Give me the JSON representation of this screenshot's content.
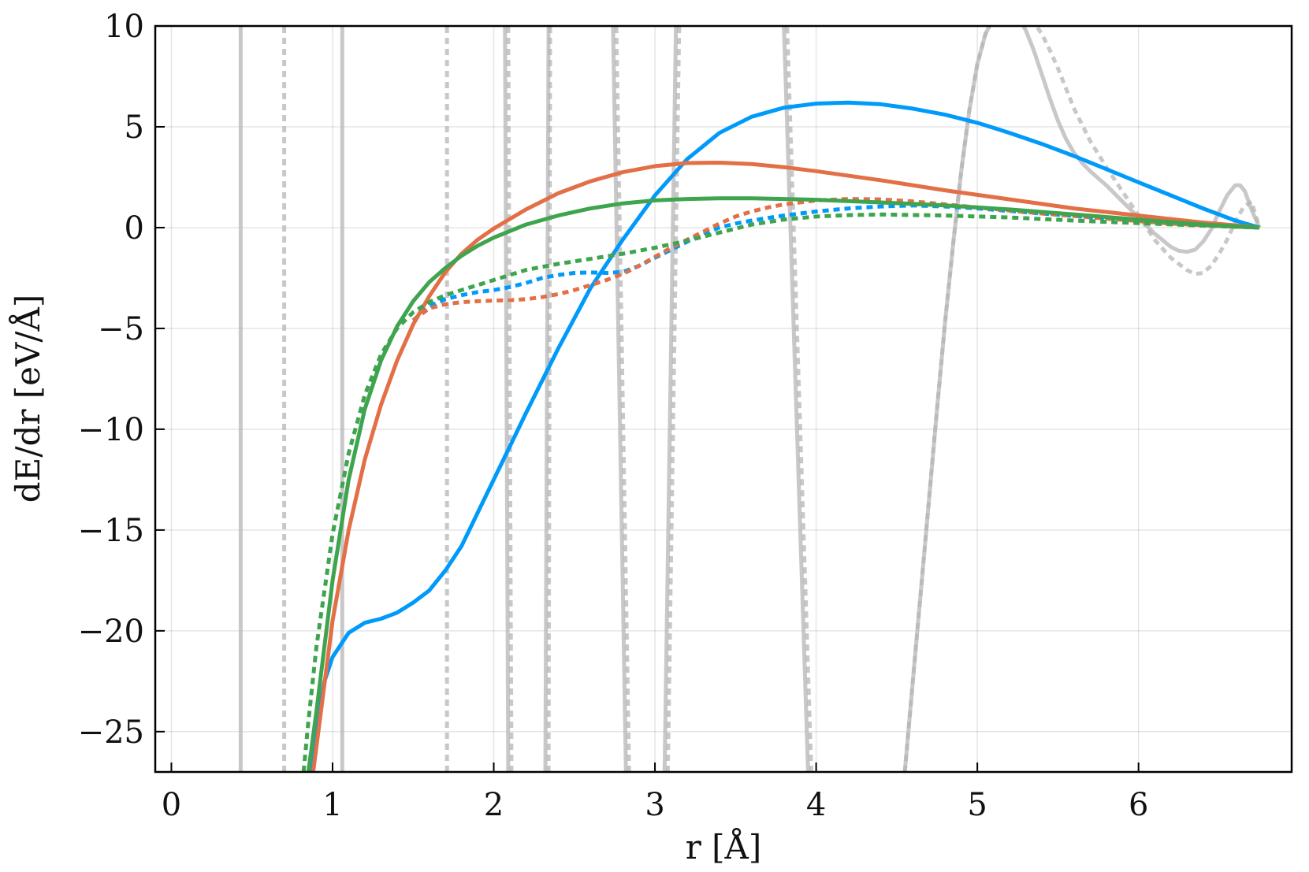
{
  "chart_data": {
    "type": "line",
    "title": "",
    "xlabel": "r [Å]",
    "ylabel": "dE/dr [eV/Å]",
    "xlim": [
      -0.1,
      6.95
    ],
    "ylim": [
      -27,
      10
    ],
    "xticks": [
      0,
      1,
      2,
      3,
      4,
      5,
      6
    ],
    "yticks": [
      10,
      5,
      0,
      -5,
      -10,
      -15,
      -20,
      -25
    ],
    "xtick_labels": [
      "0",
      "1",
      "2",
      "3",
      "4",
      "5",
      "6"
    ],
    "ytick_labels": [
      "10",
      "5",
      "0",
      "−5",
      "−10",
      "−15",
      "−20",
      "−25"
    ],
    "grid": true,
    "legend": "none",
    "colors": {
      "blue": "#009AFA",
      "orange": "#E26F46",
      "green": "#3EA44E",
      "gray": "#b5b5b5"
    },
    "series": [
      {
        "color": "blue",
        "style": "solid",
        "x": [
          0.87,
          0.9,
          0.95,
          1.0,
          1.1,
          1.2,
          1.3,
          1.4,
          1.5,
          1.6,
          1.7,
          1.8,
          2.0,
          2.2,
          2.4,
          2.6,
          2.8,
          3.0,
          3.2,
          3.4,
          3.6,
          3.8,
          4.0,
          4.2,
          4.4,
          4.6,
          4.8,
          5.0,
          5.2,
          5.4,
          5.6,
          5.8,
          6.0,
          6.2,
          6.4,
          6.6,
          6.75
        ],
        "y": [
          -27,
          -24.8,
          -22.5,
          -21.3,
          -20.1,
          -19.6,
          -19.4,
          -19.1,
          -18.6,
          -18.0,
          -17.0,
          -15.8,
          -12.5,
          -9.2,
          -6.0,
          -3.0,
          -0.6,
          1.6,
          3.4,
          4.7,
          5.5,
          5.95,
          6.15,
          6.2,
          6.12,
          5.9,
          5.6,
          5.2,
          4.7,
          4.15,
          3.55,
          2.9,
          2.25,
          1.6,
          0.95,
          0.35,
          0.0
        ]
      },
      {
        "color": "orange",
        "style": "solid",
        "x": [
          0.88,
          0.92,
          1.0,
          1.1,
          1.2,
          1.3,
          1.4,
          1.5,
          1.6,
          1.7,
          1.8,
          1.9,
          2.0,
          2.2,
          2.4,
          2.6,
          2.8,
          3.0,
          3.2,
          3.4,
          3.6,
          3.8,
          4.0,
          4.4,
          4.8,
          5.2,
          5.6,
          6.0,
          6.4,
          6.75
        ],
        "y": [
          -27,
          -24.5,
          -19.5,
          -15.0,
          -11.5,
          -8.8,
          -6.6,
          -4.8,
          -3.4,
          -2.2,
          -1.3,
          -0.6,
          -0.05,
          0.9,
          1.7,
          2.3,
          2.75,
          3.05,
          3.2,
          3.22,
          3.15,
          3.0,
          2.8,
          2.35,
          1.85,
          1.4,
          0.95,
          0.6,
          0.25,
          0.0
        ]
      },
      {
        "color": "green",
        "style": "solid",
        "x": [
          0.85,
          0.9,
          1.0,
          1.1,
          1.2,
          1.3,
          1.4,
          1.5,
          1.6,
          1.7,
          1.8,
          1.9,
          2.0,
          2.2,
          2.4,
          2.6,
          2.8,
          3.0,
          3.2,
          3.4,
          3.6,
          3.8,
          4.0,
          4.4,
          4.8,
          5.2,
          5.6,
          6.0,
          6.4,
          6.75
        ],
        "y": [
          -27,
          -24.0,
          -17.5,
          -12.5,
          -9.0,
          -6.6,
          -4.9,
          -3.65,
          -2.7,
          -2.0,
          -1.4,
          -0.9,
          -0.5,
          0.15,
          0.6,
          0.95,
          1.2,
          1.35,
          1.42,
          1.45,
          1.45,
          1.42,
          1.38,
          1.25,
          1.1,
          0.9,
          0.65,
          0.4,
          0.15,
          0.0
        ]
      },
      {
        "color": "blue",
        "style": "dashed",
        "x": [
          1.5,
          1.6,
          1.7,
          1.8,
          1.9,
          2.0,
          2.1,
          2.2,
          2.3,
          2.4,
          2.5,
          2.6,
          2.7,
          2.8,
          2.9,
          3.0,
          3.1,
          3.2,
          3.3,
          3.4,
          3.5,
          3.6,
          3.7,
          3.8,
          4.0,
          4.2,
          4.4,
          4.6,
          4.8,
          5.0,
          5.4,
          5.8,
          6.2,
          6.5,
          6.75
        ],
        "y": [
          -4.6,
          -3.9,
          -3.55,
          -3.35,
          -3.2,
          -3.1,
          -2.95,
          -2.75,
          -2.5,
          -2.35,
          -2.25,
          -2.22,
          -2.25,
          -2.2,
          -1.9,
          -1.5,
          -1.1,
          -0.7,
          -0.3,
          0.0,
          0.2,
          0.35,
          0.48,
          0.6,
          0.8,
          0.95,
          1.05,
          1.1,
          1.05,
          0.95,
          0.7,
          0.45,
          0.2,
          0.08,
          0.0
        ]
      },
      {
        "color": "orange",
        "style": "dashed",
        "x": [
          1.5,
          1.6,
          1.7,
          1.8,
          1.9,
          2.0,
          2.1,
          2.2,
          2.3,
          2.4,
          2.5,
          2.6,
          2.7,
          2.8,
          2.9,
          3.0,
          3.1,
          3.2,
          3.3,
          3.4,
          3.5,
          3.6,
          3.7,
          3.8,
          4.0,
          4.2,
          4.4,
          4.6,
          4.8,
          5.0,
          5.4,
          5.8,
          6.2,
          6.5,
          6.75
        ],
        "y": [
          -4.6,
          -4.0,
          -3.8,
          -3.7,
          -3.65,
          -3.62,
          -3.6,
          -3.55,
          -3.45,
          -3.3,
          -3.1,
          -2.85,
          -2.6,
          -2.3,
          -1.9,
          -1.45,
          -1.0,
          -0.6,
          -0.2,
          0.2,
          0.55,
          0.8,
          1.0,
          1.15,
          1.35,
          1.42,
          1.4,
          1.3,
          1.15,
          1.0,
          0.7,
          0.45,
          0.2,
          0.08,
          0.0
        ]
      },
      {
        "color": "green",
        "style": "dashed",
        "x": [
          0.82,
          0.85,
          0.9,
          1.0,
          1.1,
          1.2,
          1.3,
          1.4,
          1.5,
          1.6,
          1.7,
          1.8,
          1.9,
          2.0,
          2.2,
          2.4,
          2.6,
          2.8,
          3.0,
          3.2,
          3.4,
          3.6,
          3.8,
          4.0,
          4.2,
          4.4,
          4.8,
          5.2,
          5.6,
          6.0,
          6.4,
          6.75
        ],
        "y": [
          -27,
          -24.5,
          -20.8,
          -15.2,
          -11.2,
          -8.3,
          -6.3,
          -5.0,
          -4.2,
          -3.7,
          -3.35,
          -3.1,
          -2.85,
          -2.6,
          -2.1,
          -1.8,
          -1.55,
          -1.3,
          -1.0,
          -0.65,
          -0.25,
          0.15,
          0.4,
          0.55,
          0.62,
          0.65,
          0.6,
          0.5,
          0.35,
          0.22,
          0.1,
          0.0
        ]
      },
      {
        "color": "gray",
        "style": "solid",
        "x": [
          4.55,
          4.6,
          4.65,
          4.7,
          4.75,
          4.8,
          4.85,
          4.9,
          4.95,
          5.0,
          5.05,
          5.1,
          5.15,
          5.2,
          5.25,
          5.3,
          5.35,
          5.4,
          5.45,
          5.5,
          5.55,
          5.6,
          5.65,
          5.7,
          5.8,
          5.9,
          6.0,
          6.1,
          6.2,
          6.25,
          6.3,
          6.35,
          6.4,
          6.45,
          6.5,
          6.55,
          6.6,
          6.63,
          6.66,
          6.7,
          6.75
        ],
        "y": [
          -27,
          -22.5,
          -18.0,
          -13.5,
          -9.0,
          -4.7,
          -0.8,
          2.8,
          5.8,
          8.1,
          9.6,
          10.4,
          10.8,
          10.8,
          10.5,
          9.8,
          8.8,
          7.6,
          6.4,
          5.3,
          4.4,
          3.7,
          3.2,
          2.8,
          2.1,
          1.3,
          0.5,
          -0.3,
          -0.95,
          -1.15,
          -1.2,
          -1.1,
          -0.7,
          -0.1,
          0.8,
          1.6,
          2.1,
          2.1,
          1.8,
          0.9,
          0.0
        ]
      },
      {
        "color": "gray",
        "style": "dashed",
        "x": [
          4.55,
          4.6,
          4.65,
          4.7,
          4.75,
          4.8,
          4.85,
          4.9,
          4.95,
          5.0,
          5.05,
          5.1,
          5.15,
          5.2,
          5.25,
          5.3,
          5.35,
          5.4,
          5.45,
          5.5,
          5.55,
          5.6,
          5.7,
          5.8,
          5.9,
          6.0,
          6.1,
          6.2,
          6.3,
          6.35,
          6.4,
          6.45,
          6.5,
          6.55,
          6.6,
          6.65,
          6.7,
          6.75
        ],
        "y": [
          -27,
          -22.5,
          -18.0,
          -13.5,
          -9.0,
          -4.7,
          -0.8,
          2.8,
          5.8,
          8.1,
          9.6,
          10.4,
          10.8,
          10.9,
          10.8,
          10.6,
          10.2,
          9.6,
          8.8,
          7.9,
          6.9,
          5.9,
          4.3,
          3.0,
          1.8,
          0.6,
          -0.6,
          -1.5,
          -2.1,
          -2.3,
          -2.25,
          -1.9,
          -1.3,
          -0.6,
          0.3,
          1.0,
          1.3,
          0.0
        ]
      },
      {
        "color": "gray",
        "style": "solid",
        "x": [
          0.43,
          0.43
        ],
        "y": [
          -27,
          10
        ]
      },
      {
        "color": "gray",
        "style": "solid",
        "x": [
          1.06,
          1.06
        ],
        "y": [
          -27,
          10
        ]
      },
      {
        "color": "gray",
        "style": "dashed",
        "x": [
          0.7,
          0.7
        ],
        "y": [
          -27,
          10
        ]
      },
      {
        "color": "gray",
        "style": "dashed",
        "x": [
          1.71,
          1.71
        ],
        "y": [
          -27,
          10
        ]
      },
      {
        "color": "gray",
        "style": "solid",
        "x": [
          2.09,
          2.07
        ],
        "y": [
          -27,
          10
        ]
      },
      {
        "color": "gray",
        "style": "dashed",
        "x": [
          2.11,
          2.09
        ],
        "y": [
          -27,
          10
        ]
      },
      {
        "color": "gray",
        "style": "solid",
        "x": [
          2.32,
          2.34
        ],
        "y": [
          -27,
          10
        ]
      },
      {
        "color": "gray",
        "style": "dashed",
        "x": [
          2.34,
          2.35
        ],
        "y": [
          -27,
          10
        ]
      },
      {
        "color": "gray",
        "style": "solid",
        "x": [
          2.82,
          2.74
        ],
        "y": [
          -27,
          10
        ]
      },
      {
        "color": "gray",
        "style": "dashed",
        "x": [
          2.84,
          2.76
        ],
        "y": [
          -27,
          10
        ]
      },
      {
        "color": "gray",
        "style": "solid",
        "x": [
          3.06,
          3.13
        ],
        "y": [
          -27,
          10
        ]
      },
      {
        "color": "gray",
        "style": "dashed",
        "x": [
          3.08,
          3.15
        ],
        "y": [
          -27,
          10
        ]
      },
      {
        "color": "gray",
        "style": "solid",
        "x": [
          3.95,
          3.8
        ],
        "y": [
          -27,
          10
        ]
      },
      {
        "color": "gray",
        "style": "dashed",
        "x": [
          3.97,
          3.82
        ],
        "y": [
          -27,
          10
        ]
      }
    ]
  }
}
